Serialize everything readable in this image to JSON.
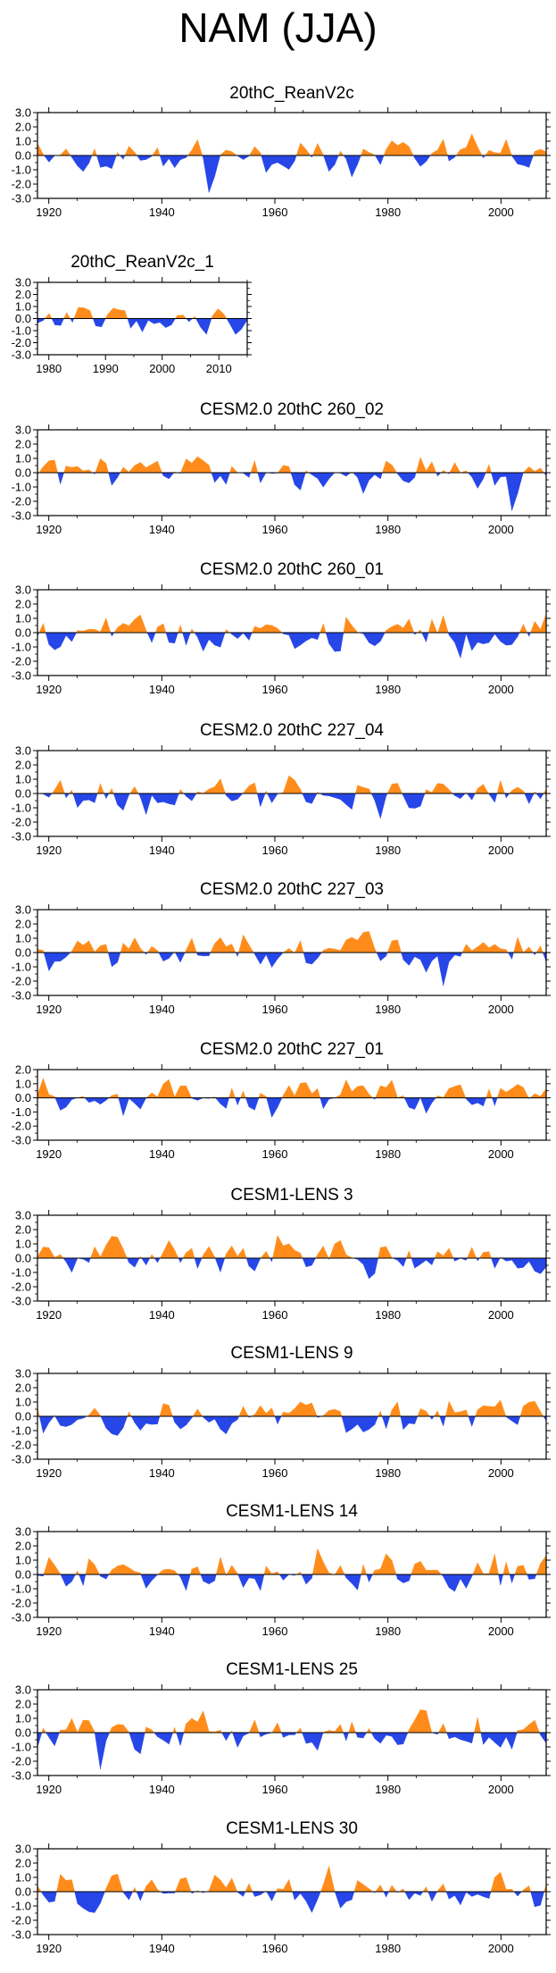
{
  "main_title": "NAM (JJA)",
  "colors": {
    "positive": "#ff8c1a",
    "negative": "#2646e8",
    "axis": "#000000"
  },
  "chart_data": [
    {
      "type": "area",
      "title": "20thC_ReanV2c",
      "ylim": [
        -3,
        3
      ],
      "yticks": [
        "3.0",
        "2.0",
        "1.0",
        "0.0",
        "-1.0",
        "-2.0",
        "-3.0"
      ],
      "x": [
        1918,
        2008
      ],
      "xticks": [
        "1920",
        "1940",
        "1960",
        "1980",
        "2000"
      ],
      "seed": 11
    },
    {
      "type": "area",
      "title": "20thC_ReanV2c_1",
      "ylim": [
        -3,
        3
      ],
      "yticks": [
        "3.0",
        "2.0",
        "1.0",
        "0.0",
        "-1.0",
        "-2.0",
        "-3.0"
      ],
      "x": [
        1978,
        2015
      ],
      "xticks": [
        "1980",
        "1990",
        "2000",
        "2010"
      ],
      "seed": 23
    },
    {
      "type": "area",
      "title": "CESM2.0 20thC 260_02",
      "ylim": [
        -3,
        3
      ],
      "yticks": [
        "3.0",
        "2.0",
        "1.0",
        "0.0",
        "-1.0",
        "-2.0",
        "-3.0"
      ],
      "x": [
        1918,
        2008
      ],
      "xticks": [
        "1920",
        "1940",
        "1960",
        "1980",
        "2000"
      ],
      "seed": 37
    },
    {
      "type": "area",
      "title": "CESM2.0 20thC 260_01",
      "ylim": [
        -3,
        3
      ],
      "yticks": [
        "3.0",
        "2.0",
        "1.0",
        "0.0",
        "-1.0",
        "-2.0",
        "-3.0"
      ],
      "x": [
        1918,
        2008
      ],
      "xticks": [
        "1920",
        "1940",
        "1960",
        "1980",
        "2000"
      ],
      "seed": 41
    },
    {
      "type": "area",
      "title": "CESM2.0 20thC 227_04",
      "ylim": [
        -3,
        3
      ],
      "yticks": [
        "3.0",
        "2.0",
        "1.0",
        "0.0",
        "-1.0",
        "-2.0",
        "-3.0"
      ],
      "x": [
        1918,
        2008
      ],
      "xticks": [
        "1920",
        "1940",
        "1960",
        "1980",
        "2000"
      ],
      "seed": 53
    },
    {
      "type": "area",
      "title": "CESM2.0 20thC 227_03",
      "ylim": [
        -3,
        3
      ],
      "yticks": [
        "3.0",
        "2.0",
        "1.0",
        "0.0",
        "-1.0",
        "-2.0",
        "-3.0"
      ],
      "x": [
        1918,
        2008
      ],
      "xticks": [
        "1920",
        "1940",
        "1960",
        "1980",
        "2000"
      ],
      "seed": 67
    },
    {
      "type": "area",
      "title": "CESM2.0 20thC 227_01",
      "ylim": [
        -3,
        2
      ],
      "yticks": [
        "2.0",
        "1.0",
        "0.0",
        "-1.0",
        "-2.0",
        "-3.0"
      ],
      "x": [
        1918,
        2008
      ],
      "xticks": [
        "1920",
        "1940",
        "1960",
        "1980",
        "2000"
      ],
      "seed": 79
    },
    {
      "type": "area",
      "title": "CESM1-LENS 3",
      "ylim": [
        -3,
        3
      ],
      "yticks": [
        "3.0",
        "2.0",
        "1.0",
        "0.0",
        "-1.0",
        "-2.0",
        "-3.0"
      ],
      "x": [
        1918,
        2008
      ],
      "xticks": [
        "1920",
        "1940",
        "1960",
        "1980",
        "2000"
      ],
      "seed": 83
    },
    {
      "type": "area",
      "title": "CESM1-LENS 9",
      "ylim": [
        -3,
        3
      ],
      "yticks": [
        "3.0",
        "2.0",
        "1.0",
        "0.0",
        "-1.0",
        "-2.0",
        "-3.0"
      ],
      "x": [
        1918,
        2008
      ],
      "xticks": [
        "1920",
        "1940",
        "1960",
        "1980",
        "2000"
      ],
      "seed": 97
    },
    {
      "type": "area",
      "title": "CESM1-LENS 14",
      "ylim": [
        -3,
        3
      ],
      "yticks": [
        "3.0",
        "2.0",
        "1.0",
        "0.0",
        "-1.0",
        "-2.0",
        "-3.0"
      ],
      "x": [
        1918,
        2008
      ],
      "xticks": [
        "1920",
        "1940",
        "1960",
        "1980",
        "2000"
      ],
      "seed": 101
    },
    {
      "type": "area",
      "title": "CESM1-LENS 25",
      "ylim": [
        -3,
        3
      ],
      "yticks": [
        "3.0",
        "2.0",
        "1.0",
        "0.0",
        "-1.0",
        "-2.0",
        "-3.0"
      ],
      "x": [
        1918,
        2008
      ],
      "xticks": [
        "1920",
        "1940",
        "1960",
        "1980",
        "2000"
      ],
      "seed": 113
    },
    {
      "type": "area",
      "title": "CESM1-LENS 30",
      "ylim": [
        -3,
        3
      ],
      "yticks": [
        "3.0",
        "2.0",
        "1.0",
        "0.0",
        "-1.0",
        "-2.0",
        "-3.0"
      ],
      "x": [
        1918,
        2008
      ],
      "xticks": [
        "1920",
        "1940",
        "1960",
        "1980",
        "2000"
      ],
      "seed": 127
    }
  ]
}
